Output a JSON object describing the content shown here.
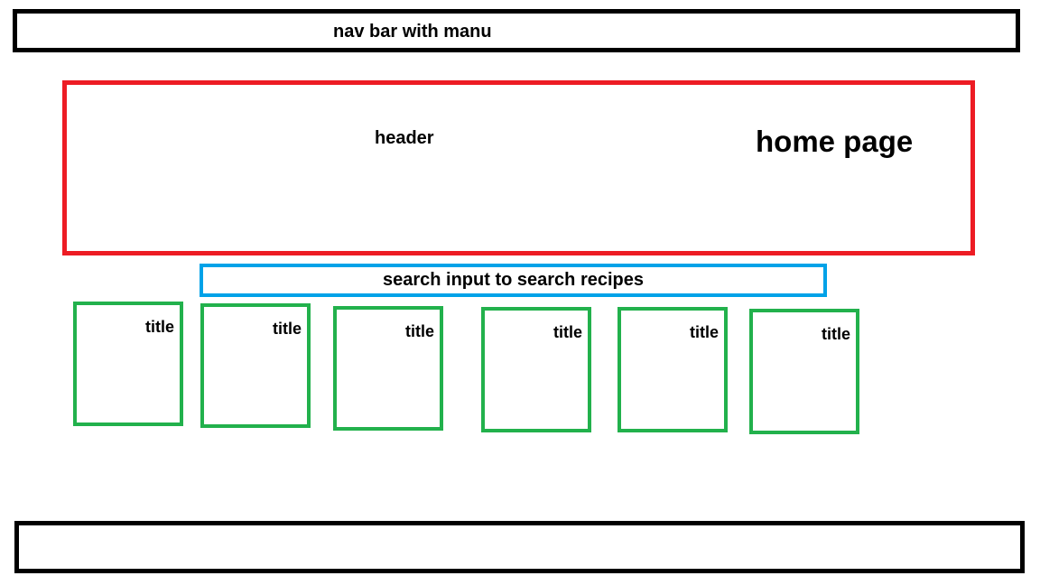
{
  "navbar": {
    "label": "nav bar with manu"
  },
  "header": {
    "label": "header",
    "page_name": "home page"
  },
  "search": {
    "value": "search input to search recipes"
  },
  "cards": [
    {
      "title": "title"
    },
    {
      "title": "title"
    },
    {
      "title": "title"
    },
    {
      "title": "title"
    },
    {
      "title": "title"
    },
    {
      "title": "title"
    }
  ],
  "colors": {
    "navbar_border": "#000000",
    "header_border": "#ed1c24",
    "search_border": "#00a2e8",
    "card_border": "#22b14c",
    "footer_border": "#000000"
  }
}
